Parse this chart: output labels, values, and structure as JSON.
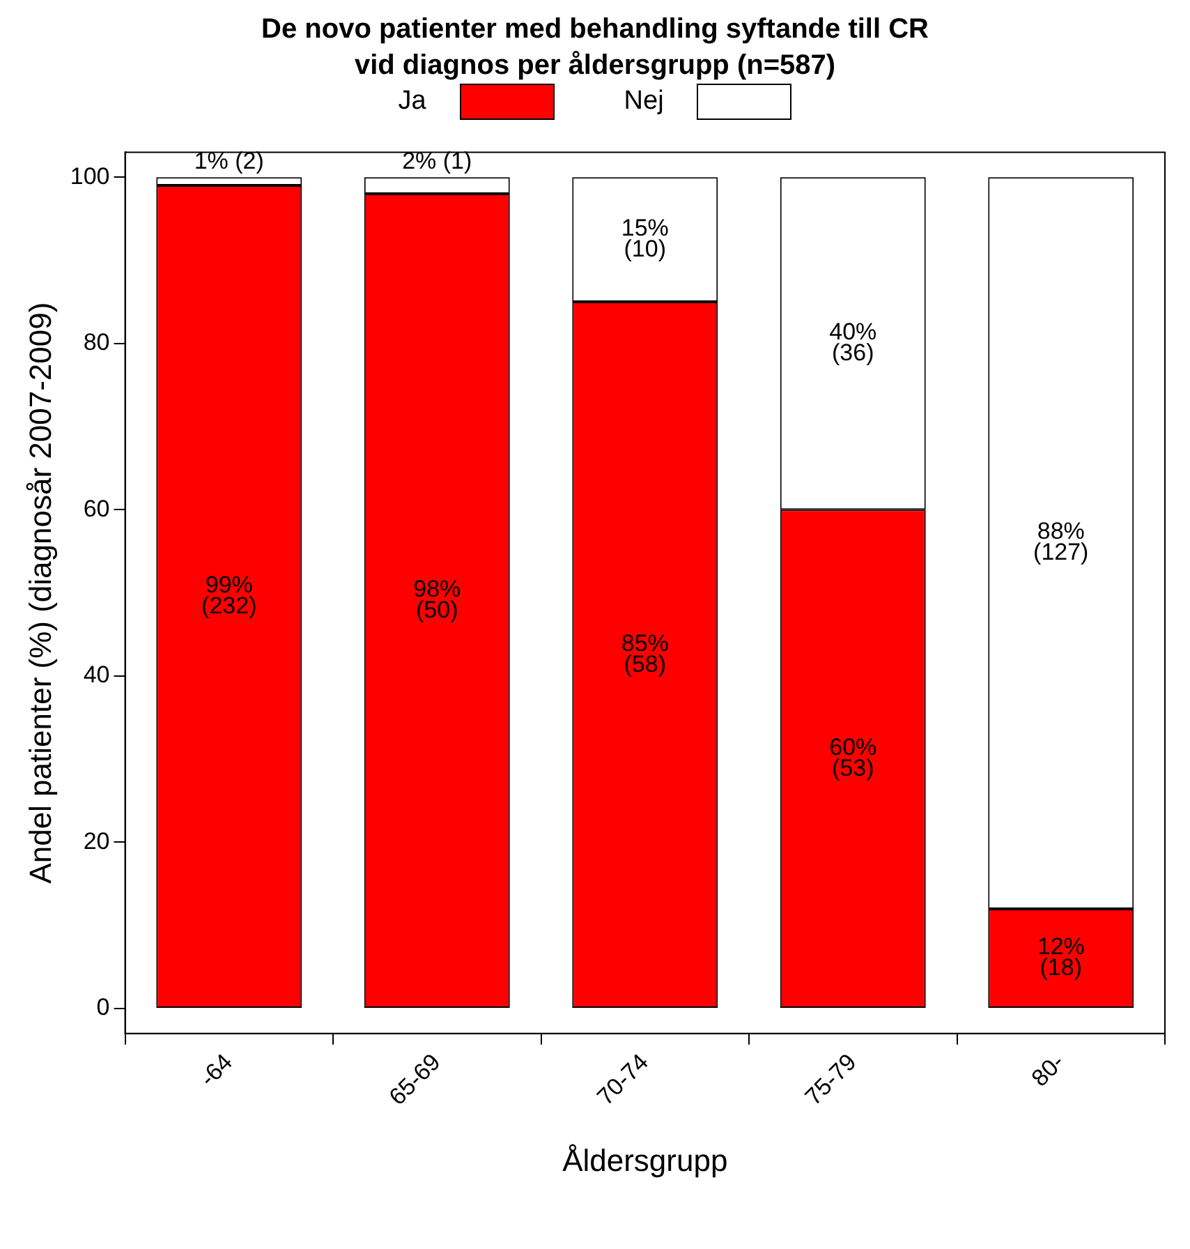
{
  "chart_data": {
    "type": "bar",
    "title": "De novo patienter med behandling syftande till CR\nvid diagnos per åldersgrupp (n=587)",
    "xlabel": "Åldersgrupp",
    "ylabel": "Andel patienter (%) (diagnosår 2007-2009)",
    "categories": [
      "-64",
      "65-69",
      "70-74",
      "75-79",
      "80-"
    ],
    "stacked": true,
    "legend": "top",
    "grid": false,
    "ylim": [
      -3,
      103
    ],
    "yticks": [
      0,
      20,
      40,
      60,
      80,
      100
    ],
    "series": [
      {
        "name": "Ja",
        "color": "#ff0000",
        "values": [
          99,
          98,
          85,
          60,
          12
        ],
        "value_labels": [
          "99%\n(232)",
          "98%\n(50)",
          "85%\n(58)",
          "60%\n(53)",
          "12%\n(18)"
        ]
      },
      {
        "name": "Nej",
        "color": "#ffffff",
        "values": [
          1,
          2,
          15,
          40,
          88
        ],
        "value_labels": [
          "1%\n(2)",
          "2%\n(1)",
          "15%\n(10)",
          "40%\n(36)",
          "88%\n(127)"
        ]
      }
    ]
  }
}
